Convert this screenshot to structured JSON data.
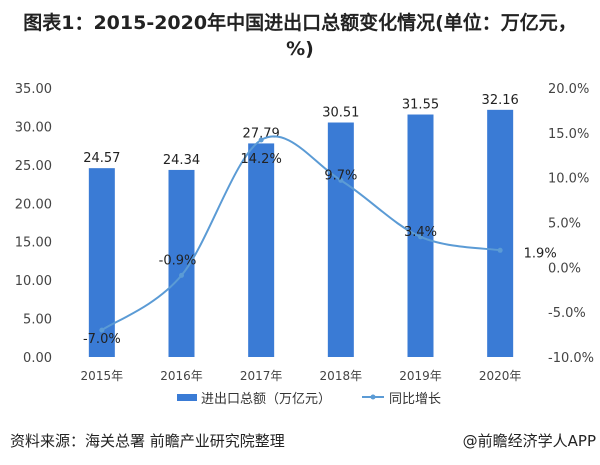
{
  "title": "图表1：2015-2020年中国进出口总额变化情况(单位：万亿元，%)",
  "source": "资料来源：海关总署 前瞻产业研究院整理",
  "credit": "@前瞻经济学人APP",
  "chart_data": {
    "type": "bar",
    "categories": [
      "2015年",
      "2016年",
      "2017年",
      "2018年",
      "2019年",
      "2020年"
    ],
    "series": [
      {
        "name": "进出口总额（万亿元）",
        "type": "bar",
        "axis": "left",
        "values": [
          24.57,
          24.34,
          27.79,
          30.51,
          31.55,
          32.16
        ],
        "labels": [
          "24.57",
          "24.34",
          "27.79",
          "30.51",
          "31.55",
          "32.16"
        ],
        "color": "#3a7bd5"
      },
      {
        "name": "同比增长",
        "type": "line",
        "axis": "right",
        "values": [
          -7.0,
          -0.9,
          14.2,
          9.7,
          3.4,
          1.9
        ],
        "labels": [
          "-7.0%",
          "-0.9%",
          "14.2%",
          "9.7%",
          "3.4%",
          "1.9%"
        ],
        "color": "#5b9bd5"
      }
    ],
    "ylim": [
      0,
      35
    ],
    "y_ticks": [
      "0.00",
      "5.00",
      "10.00",
      "15.00",
      "20.00",
      "25.00",
      "30.00",
      "35.00"
    ],
    "y2lim": [
      -10,
      20
    ],
    "y2_ticks": [
      "-10.0%",
      "-5.0%",
      "0.0%",
      "5.0%",
      "10.0%",
      "15.0%",
      "20.0%"
    ],
    "grid": false,
    "legend": "bottom"
  }
}
